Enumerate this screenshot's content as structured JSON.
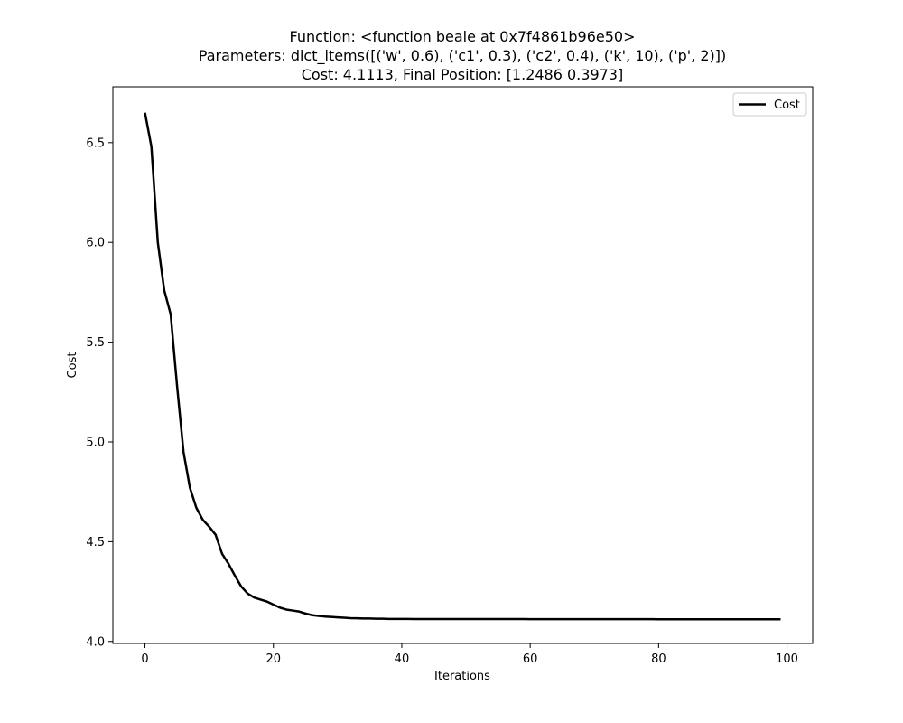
{
  "chart_data": {
    "type": "line",
    "title_lines": [
      "Function: <function beale at 0x7f4861b96e50>",
      "Parameters: dict_items([('w', 0.6), ('c1', 0.3), ('c2', 0.4), ('k', 10), ('p', 2)])",
      "Cost: 4.1113, Final Position: [1.2486 0.3973]"
    ],
    "xlabel": "Iterations",
    "ylabel": "Cost",
    "xlim": [
      -5,
      104
    ],
    "ylim": [
      3.99,
      6.78
    ],
    "xticks": [
      0,
      20,
      40,
      60,
      80,
      100
    ],
    "xtick_labels": [
      "0",
      "20",
      "40",
      "60",
      "80",
      "100"
    ],
    "yticks": [
      4.0,
      4.5,
      5.0,
      5.5,
      6.0,
      6.5
    ],
    "ytick_labels": [
      "4.0",
      "4.5",
      "5.0",
      "5.5",
      "6.0",
      "6.5"
    ],
    "grid": false,
    "legend_position": "top-right",
    "series": [
      {
        "name": "Cost",
        "color": "#000000",
        "x": [
          0,
          1,
          2,
          3,
          4,
          5,
          6,
          7,
          8,
          9,
          10,
          11,
          12,
          13,
          14,
          15,
          16,
          17,
          18,
          19,
          20,
          21,
          22,
          23,
          24,
          25,
          26,
          27,
          28,
          29,
          30,
          31,
          32,
          33,
          34,
          35,
          36,
          37,
          38,
          39,
          40,
          41,
          42,
          43,
          44,
          45,
          46,
          47,
          48,
          49,
          50,
          51,
          52,
          53,
          54,
          55,
          56,
          57,
          58,
          59,
          60,
          61,
          62,
          63,
          64,
          65,
          66,
          67,
          68,
          69,
          70,
          71,
          72,
          73,
          74,
          75,
          76,
          77,
          78,
          79,
          80,
          81,
          82,
          83,
          84,
          85,
          86,
          87,
          88,
          89,
          90,
          91,
          92,
          93,
          94,
          95,
          96,
          97,
          98,
          99
        ],
        "y": [
          6.65,
          6.48,
          6.0,
          5.76,
          5.64,
          5.28,
          4.95,
          4.77,
          4.67,
          4.61,
          4.575,
          4.535,
          4.44,
          4.39,
          4.33,
          4.275,
          4.24,
          4.22,
          4.21,
          4.2,
          4.185,
          4.17,
          4.16,
          4.155,
          4.15,
          4.14,
          4.132,
          4.128,
          4.125,
          4.123,
          4.121,
          4.119,
          4.117,
          4.116,
          4.115,
          4.115,
          4.114,
          4.114,
          4.113,
          4.113,
          4.113,
          4.113,
          4.1125,
          4.1125,
          4.1125,
          4.1123,
          4.1123,
          4.1123,
          4.1122,
          4.1122,
          4.1121,
          4.1121,
          4.1121,
          4.1121,
          4.112,
          4.112,
          4.112,
          4.112,
          4.112,
          4.112,
          4.1119,
          4.1119,
          4.1119,
          4.1119,
          4.1118,
          4.1118,
          4.1118,
          4.1118,
          4.1117,
          4.1117,
          4.1117,
          4.1117,
          4.1116,
          4.1116,
          4.1116,
          4.1116,
          4.1115,
          4.1115,
          4.1115,
          4.1115,
          4.1114,
          4.1114,
          4.1114,
          4.1114,
          4.1114,
          4.1114,
          4.1114,
          4.1114,
          4.1113,
          4.1113,
          4.1113,
          4.1113,
          4.1113,
          4.1113,
          4.1113,
          4.1113,
          4.1113,
          4.1113,
          4.1113,
          4.1113
        ]
      }
    ]
  }
}
